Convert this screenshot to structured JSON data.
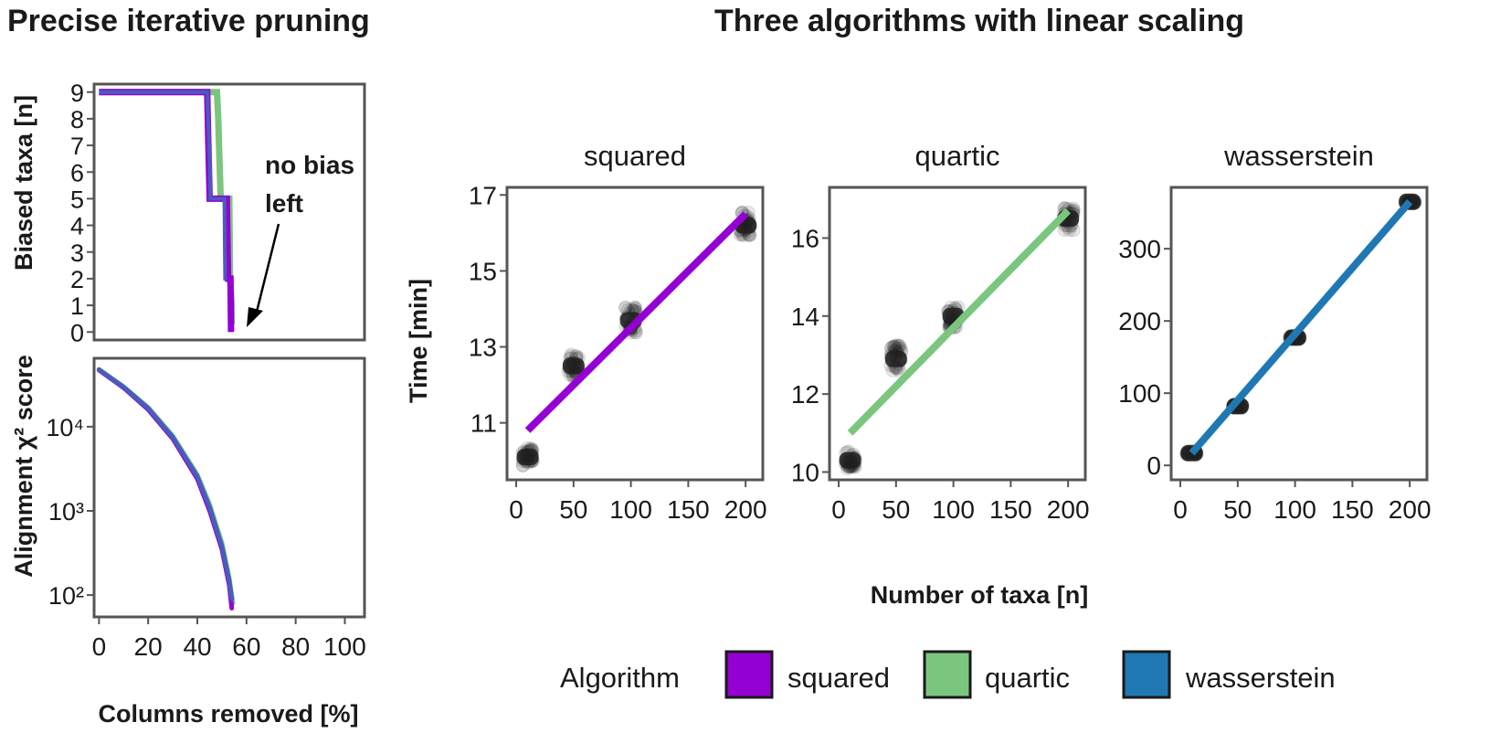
{
  "titles": {
    "left": "Precise iterative pruning",
    "right": "Three algorithms with linear scaling"
  },
  "colors": {
    "squared": "#9400d3",
    "quartic": "#7bc67e",
    "wasserstein": "#1f78b4",
    "pruning_line": "#4a5bbf",
    "points": "#222222",
    "frame": "#555555"
  },
  "legend": {
    "title": "Algorithm",
    "items": [
      {
        "label": "squared",
        "color": "#9400d3"
      },
      {
        "label": "quartic",
        "color": "#7bc67e"
      },
      {
        "label": "wasserstein",
        "color": "#1f78b4"
      }
    ]
  },
  "chart_data": [
    {
      "id": "biased-taxa",
      "type": "line",
      "ylabel": "Biased taxa [n]",
      "xlim": [
        -2,
        108
      ],
      "ylim": [
        -0.3,
        9.3
      ],
      "yticks": [
        0,
        1,
        2,
        3,
        4,
        5,
        6,
        7,
        8,
        9
      ],
      "annotation": "no bias left",
      "series": [
        {
          "color": "#7bc67e",
          "points": [
            [
              0,
              9
            ],
            [
              48,
              9
            ],
            [
              48.5,
              8
            ],
            [
              49,
              6.5
            ],
            [
              49.5,
              5
            ],
            [
              53,
              5
            ],
            [
              53.3,
              2
            ],
            [
              54,
              1
            ],
            [
              54,
              0.3
            ]
          ]
        },
        {
          "color": "#9400d3",
          "points": [
            [
              0,
              9
            ],
            [
              44,
              9
            ],
            [
              44.5,
              7
            ],
            [
              45,
              5
            ],
            [
              52,
              5
            ],
            [
              52.5,
              2
            ],
            [
              53.5,
              2
            ],
            [
              53.7,
              0
            ]
          ]
        },
        {
          "color": "#4a5bbf",
          "points": [
            [
              0,
              9
            ],
            [
              44,
              9
            ],
            [
              44.2,
              8.5
            ],
            [
              44.6,
              7.5
            ],
            [
              45,
              6.5
            ],
            [
              45.3,
              5
            ],
            [
              51,
              5
            ],
            [
              51.3,
              2
            ],
            [
              52,
              2
            ]
          ]
        }
      ]
    },
    {
      "id": "alignment-score",
      "type": "line",
      "ylabel": "Alignment χ² score",
      "xlabel": "Columns removed [%]",
      "xlim": [
        -2,
        108
      ],
      "log_y": true,
      "ylim": [
        55,
        65000
      ],
      "xticks": [
        0,
        20,
        40,
        60,
        80,
        100
      ],
      "yticks": [
        100,
        1000,
        10000
      ],
      "ytick_labels": [
        "10²",
        "10³",
        "10⁴"
      ],
      "series": [
        {
          "color": "#7bc67e",
          "points": [
            [
              0,
              48000
            ],
            [
              10,
              30000
            ],
            [
              20,
              17000
            ],
            [
              30,
              7800
            ],
            [
              40,
              2700
            ],
            [
              45,
              1200
            ],
            [
              50,
              420
            ],
            [
              53,
              160
            ],
            [
              54.5,
              80
            ]
          ]
        },
        {
          "color": "#9400d3",
          "points": [
            [
              0,
              47000
            ],
            [
              10,
              29000
            ],
            [
              20,
              16000
            ],
            [
              30,
              7200
            ],
            [
              40,
              2400
            ],
            [
              45,
              1000
            ],
            [
              50,
              350
            ],
            [
              53,
              130
            ],
            [
              54,
              70
            ]
          ]
        },
        {
          "color": "#4a5bbf",
          "points": [
            [
              0,
              47500
            ],
            [
              10,
              29500
            ],
            [
              20,
              16500
            ],
            [
              30,
              7500
            ],
            [
              40,
              2550
            ],
            [
              45,
              1100
            ],
            [
              50,
              380
            ],
            [
              53,
              145
            ],
            [
              54,
              90
            ]
          ]
        }
      ]
    },
    {
      "id": "facet-squared",
      "type": "scatter",
      "facet_title": "squared",
      "xlim": [
        -8,
        215
      ],
      "ylim": [
        9.5,
        17.2
      ],
      "xticks": [
        0,
        50,
        100,
        150,
        200
      ],
      "yticks": [
        11,
        13,
        15,
        17
      ],
      "color": "#9400d3",
      "fit": {
        "x": [
          10,
          200
        ],
        "y": [
          10.8,
          16.5
        ]
      },
      "clusters": [
        {
          "x": 10,
          "y": 10.1,
          "spread_y": 0.25
        },
        {
          "x": 50,
          "y": 12.5,
          "spread_y": 0.3
        },
        {
          "x": 100,
          "y": 13.7,
          "spread_y": 0.35
        },
        {
          "x": 200,
          "y": 16.2,
          "spread_y": 0.35
        }
      ]
    },
    {
      "id": "facet-quartic",
      "type": "scatter",
      "facet_title": "quartic",
      "xlim": [
        -8,
        215
      ],
      "ylim": [
        9.8,
        17.3
      ],
      "xticks": [
        0,
        50,
        100,
        150,
        200
      ],
      "yticks": [
        10,
        12,
        14,
        16
      ],
      "color": "#7bc67e",
      "fit": {
        "x": [
          10,
          200
        ],
        "y": [
          11.0,
          16.7
        ]
      },
      "clusters": [
        {
          "x": 10,
          "y": 10.3,
          "spread_y": 0.25
        },
        {
          "x": 50,
          "y": 12.9,
          "spread_y": 0.35
        },
        {
          "x": 100,
          "y": 14.0,
          "spread_y": 0.3
        },
        {
          "x": 200,
          "y": 16.5,
          "spread_y": 0.3
        }
      ]
    },
    {
      "id": "facet-wasserstein",
      "type": "scatter",
      "facet_title": "wasserstein",
      "xlabel": "Number of taxa [n]",
      "xlim": [
        -8,
        215
      ],
      "ylim": [
        -20,
        385
      ],
      "xticks": [
        0,
        50,
        100,
        150,
        200
      ],
      "yticks": [
        0,
        100,
        200,
        300
      ],
      "color": "#1f78b4",
      "fit": {
        "x": [
          10,
          200
        ],
        "y": [
          17,
          365
        ]
      },
      "clusters": [
        {
          "x": 10,
          "y": 17,
          "spread_y": 2
        },
        {
          "x": 50,
          "y": 82,
          "spread_y": 2
        },
        {
          "x": 100,
          "y": 177,
          "spread_y": 2
        },
        {
          "x": 200,
          "y": 365,
          "spread_y": 2
        }
      ]
    }
  ],
  "shared_ylabel": "Time [min]"
}
